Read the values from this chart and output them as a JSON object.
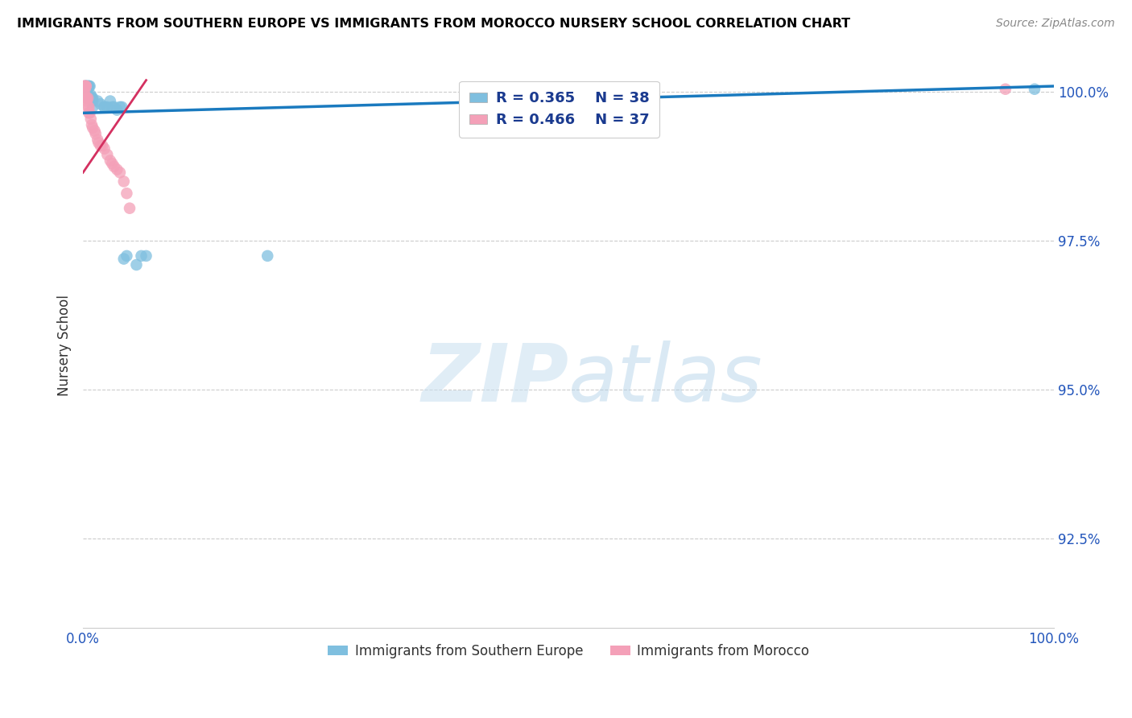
{
  "title": "IMMIGRANTS FROM SOUTHERN EUROPE VS IMMIGRANTS FROM MOROCCO NURSERY SCHOOL CORRELATION CHART",
  "source": "Source: ZipAtlas.com",
  "ylabel": "Nursery School",
  "blue_color": "#7fbfdf",
  "pink_color": "#f4a0b8",
  "blue_line_color": "#1a7abf",
  "pink_line_color": "#d43060",
  "watermark_zip": "ZIP",
  "watermark_atlas": "atlas",
  "legend_label_blue": "Immigrants from Southern Europe",
  "legend_label_pink": "Immigrants from Morocco",
  "xlim": [
    0.0,
    1.0
  ],
  "ylim": [
    0.91,
    1.005
  ],
  "yticks": [
    0.925,
    0.95,
    0.975,
    1.0
  ],
  "ytick_labels": [
    "92.5%",
    "95.0%",
    "97.5%",
    "100.0%"
  ],
  "blue_scatter_x": [
    0.002,
    0.002,
    0.003,
    0.003,
    0.003,
    0.004,
    0.004,
    0.005,
    0.005,
    0.005,
    0.005,
    0.006,
    0.006,
    0.007,
    0.008,
    0.008,
    0.009,
    0.01,
    0.01,
    0.01,
    0.015,
    0.018,
    0.022,
    0.022,
    0.025,
    0.028,
    0.03,
    0.032,
    0.035,
    0.038,
    0.04,
    0.042,
    0.045,
    0.055,
    0.06,
    0.065,
    0.19,
    0.98
  ],
  "blue_scatter_y": [
    1.0005,
    1.001,
    1.0005,
    1.001,
    1.001,
    1.001,
    1.001,
    1.001,
    0.9995,
    0.999,
    1.0005,
    1.001,
    1.001,
    1.001,
    0.9995,
    0.999,
    0.999,
    0.999,
    0.9985,
    0.9975,
    0.9985,
    0.998,
    0.9975,
    0.9975,
    0.9975,
    0.9985,
    0.9975,
    0.9975,
    0.997,
    0.9975,
    0.9975,
    0.972,
    0.9725,
    0.971,
    0.9725,
    0.9725,
    0.9725,
    1.0005
  ],
  "pink_scatter_x": [
    0.001,
    0.001,
    0.002,
    0.002,
    0.002,
    0.002,
    0.003,
    0.003,
    0.003,
    0.003,
    0.004,
    0.004,
    0.005,
    0.005,
    0.006,
    0.006,
    0.007,
    0.008,
    0.009,
    0.01,
    0.012,
    0.013,
    0.015,
    0.016,
    0.018,
    0.02,
    0.022,
    0.025,
    0.028,
    0.03,
    0.032,
    0.035,
    0.038,
    0.042,
    0.045,
    0.048,
    0.95
  ],
  "pink_scatter_y": [
    1.001,
    1.001,
    1.001,
    1.001,
    1.0005,
    0.9995,
    1.001,
    1.001,
    0.999,
    0.999,
    0.999,
    0.9985,
    0.999,
    0.9975,
    0.9975,
    0.9965,
    0.9965,
    0.9955,
    0.9945,
    0.994,
    0.9935,
    0.993,
    0.992,
    0.9915,
    0.991,
    0.991,
    0.9905,
    0.9895,
    0.9885,
    0.988,
    0.9875,
    0.987,
    0.9865,
    0.985,
    0.983,
    0.9805,
    1.0005
  ],
  "blue_line_x": [
    0.0,
    1.0
  ],
  "blue_line_y": [
    0.9965,
    1.001
  ],
  "pink_line_x": [
    0.0,
    0.065
  ],
  "pink_line_y": [
    0.9865,
    1.002
  ]
}
